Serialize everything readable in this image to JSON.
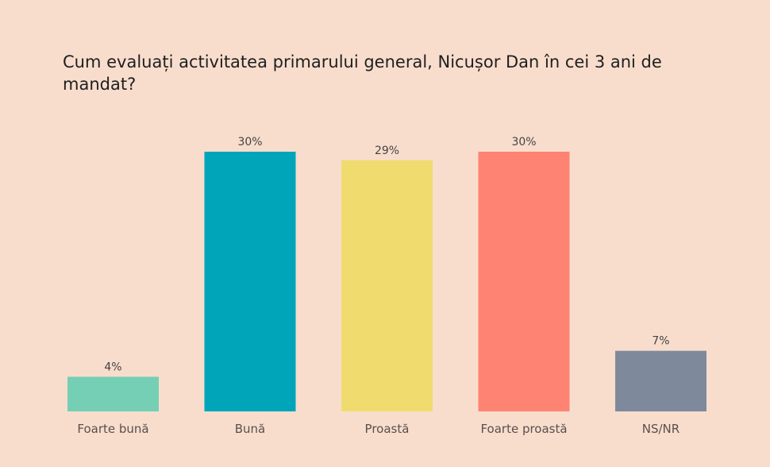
{
  "chart_data": {
    "type": "bar",
    "title": "Cum evaluați activitatea primarului general, Nicușor Dan în cei 3 ani de mandat?",
    "categories": [
      "Foarte bună",
      "Bună",
      "Proastă",
      "Foarte proastă",
      "NS/NR"
    ],
    "values": [
      4,
      30,
      29,
      30,
      7
    ],
    "data_labels": [
      "4%",
      "30%",
      "29%",
      "30%",
      "7%"
    ],
    "colors": [
      "#74cfb5",
      "#00a5ba",
      "#f0dc6e",
      "#fe8373",
      "#7e8a9c"
    ],
    "xlabel": "",
    "ylabel": "",
    "ylim": [
      0,
      30
    ],
    "grid": false,
    "legend": "none"
  }
}
